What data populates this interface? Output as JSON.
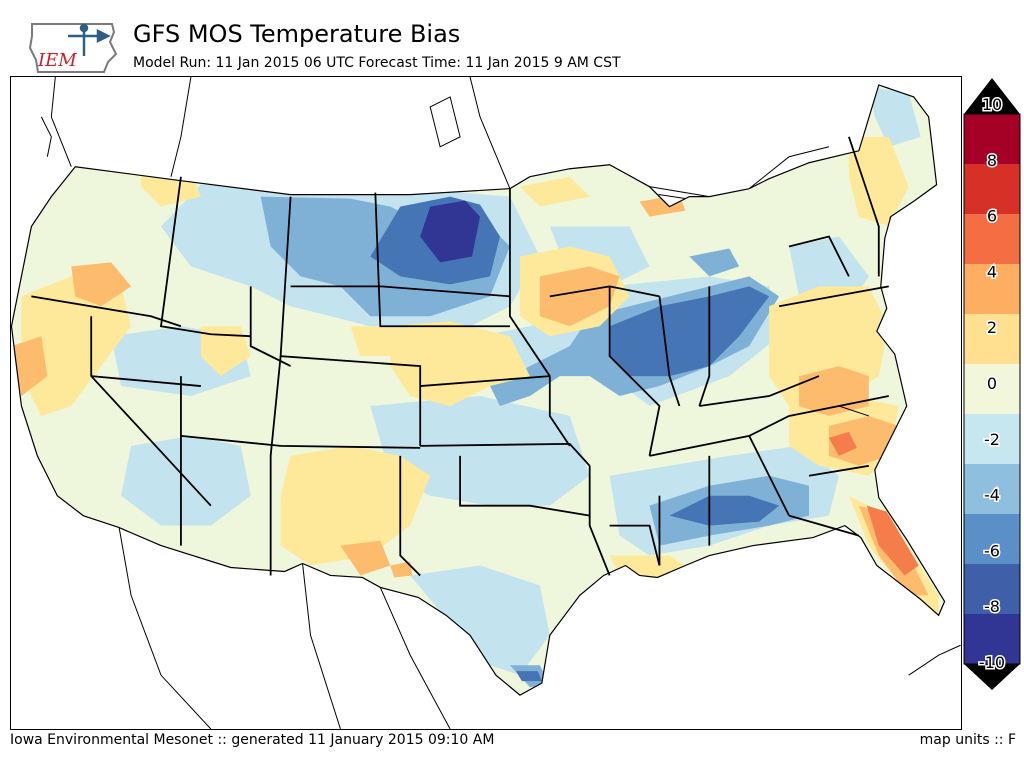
{
  "header": {
    "title": "GFS MOS Temperature Bias",
    "subtitle": "Model Run: 11 Jan 2015 06 UTC Forecast Time: 11 Jan 2015 9 AM CST",
    "logo_text": "IEM"
  },
  "footer": {
    "left": "Iowa Environmental Mesonet :: generated 11 January 2015 09:10 AM",
    "right": "map units :: F"
  },
  "legend": {
    "levels": [
      10,
      8,
      6,
      4,
      2,
      0,
      -2,
      -4,
      -6,
      -8,
      -10
    ],
    "labels": [
      "10",
      "8",
      "6",
      "4",
      "2",
      "0",
      "-2",
      "-4",
      "-6",
      "-8",
      "-10"
    ],
    "colors": [
      "#a50026",
      "#d73027",
      "#f46d43",
      "#fdae61",
      "#fee090",
      "#f2f7dc",
      "#c6e6f0",
      "#8fbfdf",
      "#5a8fc7",
      "#3f5fa8",
      "#313695"
    ],
    "over_color": "#000000",
    "under_color": "#000000"
  },
  "colors": {
    "bin_neg10_neg8": "#313695",
    "bin_neg8_neg6": "#4575b4",
    "bin_neg6_neg4": "#7fb1d6",
    "bin_neg4_neg2": "#c3e3ef",
    "bin_neg2_0": "#eef6dc",
    "bin_0_2": "#fee99a",
    "bin_2_4": "#fdbb6d",
    "bin_4_6": "#f57d4c"
  }
}
